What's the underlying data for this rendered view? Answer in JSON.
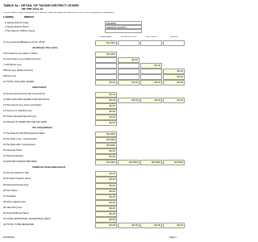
{
  "header": {
    "title": "TABLE 4a - DETAIL OF TAXING DISTRICT LEVIES",
    "subtitle": "Tax Year 2012-13",
    "note": "NOTE: Retain a copy of levies for your records. Report all values as instructed on form to be completed by the assessor.",
    "county_label": "County:",
    "county": "Marion"
  },
  "fields": [
    {
      "label": "1 Taxing District Code",
      "value": "2404000"
    },
    {
      "label": "2 Taxing District Name",
      "value": "MARION COUNTY"
    },
    {
      "label": "3 Tax Agency (Office) Name"
    }
  ],
  "table": {
    "columns": [
      "PERMANENT",
      "LOCAL OPTION",
      "GAP BOND",
      "BONDS"
    ],
    "rows": [
      {
        "label": "4 Levy Approved/Budget on Form LB-50",
        "cells": [
          "$3.0302",
          "",
          "",
          ""
        ]
      },
      {
        "label": "Ad Valorem Tax Levies",
        "section": true
      },
      {
        "label": "5 Permanent Levy (Rate x Value)",
        "cells": [
          "$3.0302"
        ]
      },
      {
        "label": "6 Local Option Levy (Dollar Amount)",
        "cells": [
          "",
          "$0.00"
        ]
      },
      {
        "label": "7 GAP Bond Levy",
        "cells": [
          "",
          "",
          "$0.00"
        ]
      },
      {
        "label": "8 Bond Levy (Dollar Amount)",
        "cells": [
          "",
          "",
          "",
          "$0.00"
        ]
      },
      {
        "label": "9 Bond Levy",
        "cells": [
          "",
          "",
          "",
          "$0.00"
        ]
      },
      {
        "label": "10 TOTAL DOLLARS LEVIED",
        "cells": [
          "$0.00",
          "$0.00",
          "$0.00",
          "$0.00"
        ]
      },
      {
        "label": "Adjustments",
        "section": true
      },
      {
        "label": "11 Amount Received Under Construction",
        "cells": [
          "$0.00"
        ]
      },
      {
        "label": "12 NET DOLLARS LEVIED FOR TAX ROLE",
        "cells": [
          "$0.00",
          "$0.00",
          "$0.00",
          "$0.00"
        ]
      },
      {
        "label": "13 Permanent Levy and Local Option",
        "cells": [
          "$0.00"
        ]
      },
      {
        "label": "14 Amount of Certified Levy",
        "cells": [
          "$0.00"
        ]
      },
      {
        "label": "15 Urban Renewal Special Levy",
        "cells": [
          "$0.00"
        ]
      },
      {
        "label": "16 VALUE TO COMPUTE THE TAX RATE",
        "cells": [
          "$0.00"
        ]
      },
      {
        "label": "Tax Computations",
        "section": true
      },
      {
        "label": "17 Tax Rate Per $1,000 Assessed Value",
        "cells": [
          "$3.0302"
        ]
      },
      {
        "label": "18 Tax Rate Loss - Compression",
        "cells": [
          "$0.0000"
        ]
      },
      {
        "label": "19 Tax Rate After Compression",
        "cells": [
          "$0.0000"
        ]
      },
      {
        "label": "20 Imposed Taxes",
        "cells": [
          "$0.00"
        ]
      },
      {
        "label": "21 Taxes Extended",
        "cells": [
          "$0.00"
        ]
      },
      {
        "label": "22 DISTRICT RATES IMPOSED",
        "cells": [
          "$3.0302",
          "$0.0000",
          "$0.0000",
          "$0.0000"
        ]
      },
      {
        "label": "Additional Taxes/Adjustments",
        "section": true
      },
      {
        "label": "23 Amount Added to Roll",
        "cells": [
          "$0.00"
        ]
      },
      {
        "label": "24 Omitted Property Taxes",
        "cells": [
          "$0.00"
        ]
      },
      {
        "label": "25 Special Assessments",
        "cells": [
          "$0.00"
        ]
      },
      {
        "label": "26 Fire Patrol",
        "cells": [
          "$0.00"
        ]
      },
      {
        "label": "27 Penalties",
        "cells": [
          "$0.00"
        ]
      },
      {
        "label": "28 Other Adjustments",
        "cells": [
          "$0.00"
        ]
      },
      {
        "label": "29 Late Filing Fee",
        "cells": [
          "$0.00"
        ]
      },
      {
        "label": "30 Total Additional Taxes",
        "cells": [
          "$0.00"
        ]
      },
      {
        "label": "31 TOTAL ADDITIONAL TAXES/FINAL RECS",
        "cells": [
          "$0.00"
        ]
      },
      {
        "label": "32 TOTAL TO BE RECEIVED",
        "cells": [
          "$0.00",
          "$0.00",
          "$0.00",
          "$0.00"
        ]
      }
    ]
  },
  "footer": {
    "date": "10/19/2012",
    "page": "Page 1"
  }
}
